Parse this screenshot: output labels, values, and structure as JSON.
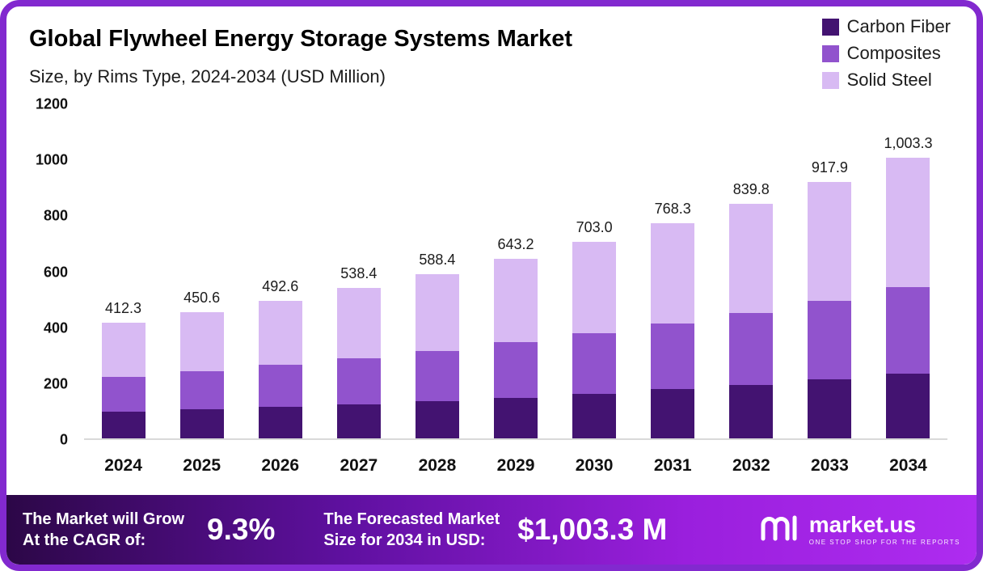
{
  "header": {
    "title": "Global Flywheel Energy Storage Systems Market",
    "subtitle": "Size, by Rims Type, 2024-2034 (USD Million)"
  },
  "legend": [
    {
      "label": "Carbon Fiber",
      "color": "#431371"
    },
    {
      "label": "Composites",
      "color": "#9153cd"
    },
    {
      "label": "Solid Steel",
      "color": "#d8baf3"
    }
  ],
  "chart_data": {
    "type": "bar",
    "stacked": true,
    "title": "Global Flywheel Energy Storage Systems Market Size, by Rims Type, 2024-2034 (USD Million)",
    "categories": [
      "2024",
      "2025",
      "2026",
      "2027",
      "2028",
      "2029",
      "2030",
      "2031",
      "2032",
      "2033",
      "2034"
    ],
    "series": [
      {
        "name": "Carbon Fiber",
        "color": "#431371",
        "values": [
          95.0,
          103.0,
          112.0,
          122.0,
          134.0,
          146.0,
          160.0,
          175.0,
          192.0,
          210.0,
          230.0
        ]
      },
      {
        "name": "Composites",
        "color": "#9153cd",
        "values": [
          125.0,
          137.0,
          150.0,
          165.0,
          179.0,
          197.0,
          215.0,
          235.0,
          256.0,
          282.0,
          310.0
        ]
      },
      {
        "name": "Solid Steel",
        "color": "#d8baf3",
        "values": [
          192.3,
          210.6,
          230.6,
          251.4,
          275.4,
          300.2,
          328.0,
          358.3,
          391.8,
          425.9,
          463.3
        ]
      }
    ],
    "totals": [
      412.3,
      450.6,
      492.6,
      538.4,
      588.4,
      643.2,
      703.0,
      768.3,
      839.8,
      917.9,
      1003.3
    ],
    "totals_labels": [
      "412.3",
      "450.6",
      "492.6",
      "538.4",
      "588.4",
      "643.2",
      "703.0",
      "768.3",
      "839.8",
      "917.9",
      "1,003.3"
    ],
    "ylim": [
      0,
      1200
    ],
    "yticks": [
      0,
      200,
      400,
      600,
      800,
      1000,
      1200
    ],
    "legend_position": "top-right",
    "grid": false
  },
  "footer": {
    "cagr_label_line1": "The Market will Grow",
    "cagr_label_line2": "At the CAGR of:",
    "cagr_value": "9.3%",
    "forecast_label_line1": "The Forecasted Market",
    "forecast_label_line2": "Size for 2034 in USD:",
    "forecast_value": "$1,003.3 M",
    "brand_name": "market.us",
    "brand_tagline": "ONE STOP SHOP FOR THE REPORTS"
  }
}
